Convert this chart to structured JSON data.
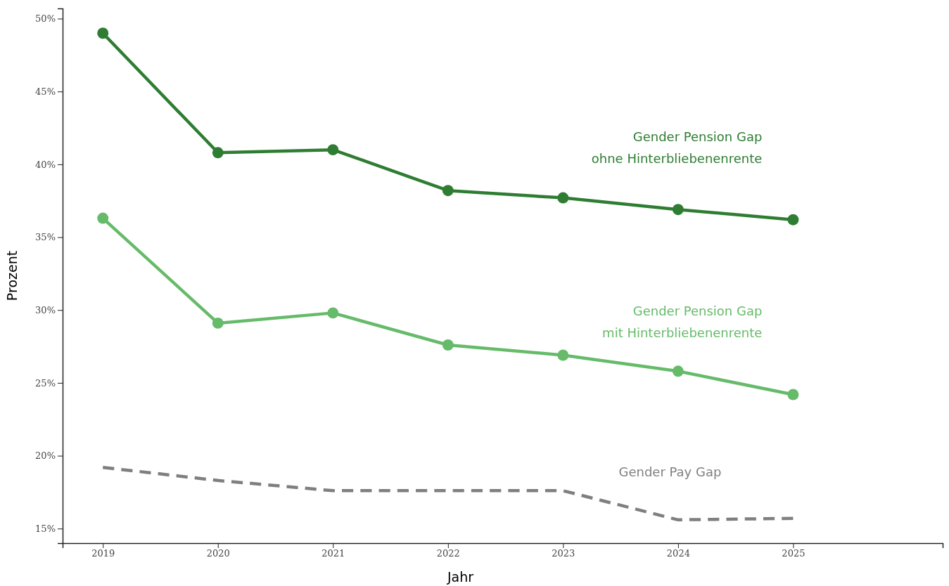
{
  "chart_data": {
    "type": "line",
    "xlabel": "Jahr",
    "ylabel": "Prozent",
    "x": [
      2019,
      2020,
      2021,
      2022,
      2023,
      2024,
      2025
    ],
    "xlim": [
      2018.65,
      2026.3
    ],
    "xticks": [
      2019,
      2020,
      2021,
      2022,
      2023,
      2024,
      2025
    ],
    "ylim": [
      14,
      50.7
    ],
    "yticks": [
      {
        "value": 15,
        "label": "15%"
      },
      {
        "value": 20,
        "label": "20%"
      },
      {
        "value": 25,
        "label": "25%"
      },
      {
        "value": 30,
        "label": "30%"
      },
      {
        "value": 35,
        "label": "35%"
      },
      {
        "value": 40,
        "label": "40%"
      },
      {
        "value": 45,
        "label": "45%"
      },
      {
        "value": 50,
        "label": "50%"
      }
    ],
    "grid": false,
    "series": [
      {
        "name": "Gender Pension Gap\nohne Hinterbliebenenrente",
        "color": "#2e7d32",
        "marker": "circle",
        "line_style": "solid",
        "values": [
          49.0,
          40.8,
          41.0,
          38.2,
          37.7,
          36.9,
          36.2
        ]
      },
      {
        "name": "Gender Pension Gap\nmit Hinterbliebenenrente",
        "color": "#66bb6a",
        "marker": "circle",
        "line_style": "solid",
        "values": [
          36.3,
          29.1,
          29.8,
          27.6,
          26.9,
          25.8,
          24.2
        ]
      },
      {
        "name": "Gender Pay Gap",
        "color": "#7f7f7f",
        "marker": "none",
        "line_style": "dashed",
        "values": [
          19.2,
          18.3,
          17.6,
          17.6,
          17.6,
          15.6,
          15.7
        ]
      }
    ]
  }
}
